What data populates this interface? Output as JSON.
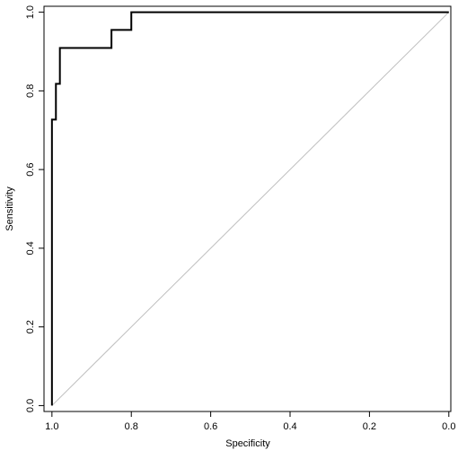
{
  "chart_data": {
    "type": "line",
    "title": "",
    "xlabel": "Specificity",
    "ylabel": "Sensitivity",
    "xlim": [
      1.02,
      -0.005
    ],
    "ylim": [
      -0.015,
      1.015
    ],
    "x_reversed": true,
    "grid": false,
    "x_ticks": [
      1.0,
      0.8,
      0.6,
      0.4,
      0.2,
      0.0
    ],
    "x_tick_labels": [
      "1.0",
      "0.8",
      "0.6",
      "0.4",
      "0.2",
      "0.0"
    ],
    "y_ticks": [
      0.0,
      0.2,
      0.4,
      0.6,
      0.8,
      1.0
    ],
    "y_tick_labels": [
      "0.0",
      "0.2",
      "0.4",
      "0.6",
      "0.8",
      "1.0"
    ],
    "series": [
      {
        "role": "roc-curve",
        "color": "#000000",
        "x": [
          1.0,
          1.0,
          0.99,
          0.99,
          0.98,
          0.98,
          0.85,
          0.85,
          0.8,
          0.8,
          0.0
        ],
        "y": [
          0.0,
          0.727,
          0.727,
          0.818,
          0.818,
          0.909,
          0.909,
          0.955,
          0.955,
          1.0,
          1.0
        ]
      },
      {
        "role": "reference-diagonal",
        "color": "#bebebe",
        "x": [
          1.0,
          0.0
        ],
        "y": [
          0.0,
          1.0
        ]
      }
    ]
  }
}
